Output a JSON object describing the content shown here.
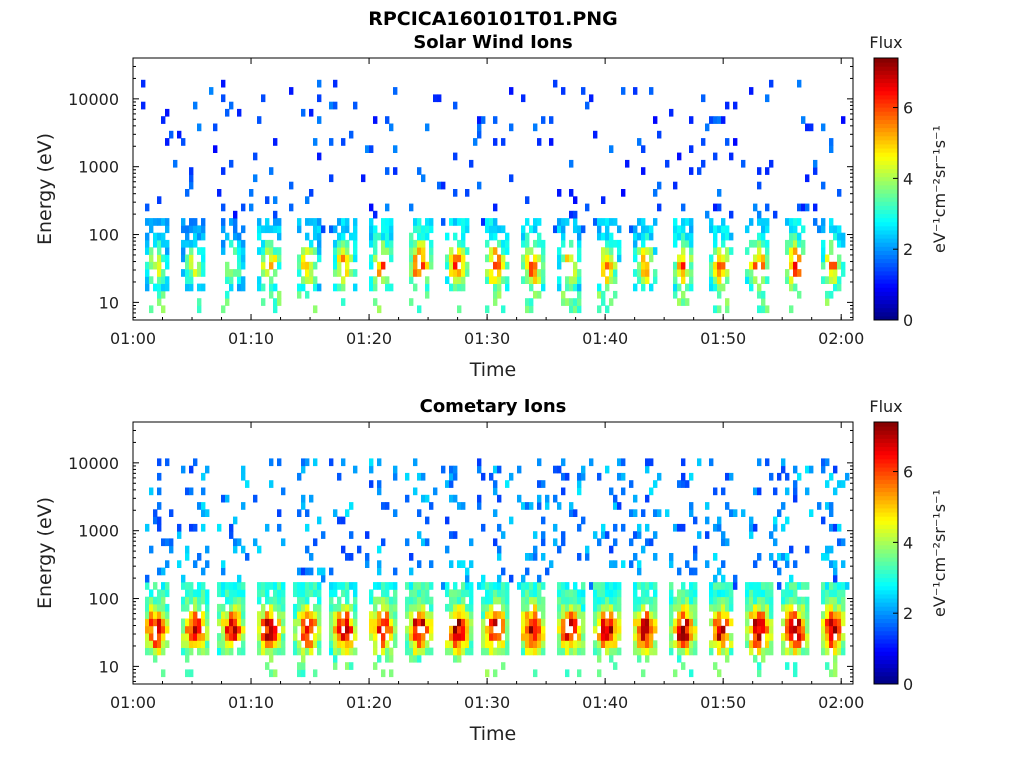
{
  "figure": {
    "title": "RPCICA160101T01.PNG"
  },
  "chart_data": [
    {
      "type": "heatmap",
      "title": "Solar Wind Ions",
      "xlabel": "Time",
      "ylabel": "Energy (eV)",
      "x_ticks": [
        "01:00",
        "01:10",
        "01:20",
        "01:30",
        "01:40",
        "01:50",
        "02:00"
      ],
      "x_range": [
        "01:00",
        "02:01"
      ],
      "y_ticks": [
        "10",
        "100",
        "1000",
        "10000"
      ],
      "y_scale": "log",
      "y_range": [
        5.5,
        40000
      ],
      "colorbar": {
        "title": "Flux",
        "label": "eV⁻¹cm⁻²sr⁻¹s⁻¹",
        "ticks": [
          "0",
          "2",
          "4",
          "6"
        ],
        "range": [
          0,
          7.4
        ],
        "colormap": "jet"
      },
      "scan_centers_min": [
        2.0,
        5.2,
        8.4,
        11.6,
        14.8,
        17.9,
        21.1,
        24.3,
        27.5,
        30.7,
        33.9,
        37.0,
        40.2,
        43.4,
        46.6,
        49.8,
        53.0,
        56.1,
        59.3
      ],
      "peak_energy_eV": 35,
      "peak_flux": [
        4.6,
        4.4,
        4.3,
        5.2,
        5.0,
        5.3,
        5.6,
        6.2,
        5.9,
        5.8,
        5.7,
        5.0,
        5.3,
        5.2,
        5.4,
        5.4,
        5.6,
        5.8,
        5.3
      ],
      "background_range_eV": [
        100,
        20000
      ],
      "background_flux": 1.6
    },
    {
      "type": "heatmap",
      "title": "Cometary Ions",
      "xlabel": "Time",
      "ylabel": "Energy (eV)",
      "x_ticks": [
        "01:00",
        "01:10",
        "01:20",
        "01:30",
        "01:40",
        "01:50",
        "02:00"
      ],
      "x_range": [
        "01:00",
        "02:01"
      ],
      "y_ticks": [
        "10",
        "100",
        "1000",
        "10000"
      ],
      "y_scale": "log",
      "y_range": [
        5.5,
        40000
      ],
      "colorbar": {
        "title": "Flux",
        "label": "eV⁻¹cm⁻²sr⁻¹s⁻¹",
        "ticks": [
          "0",
          "2",
          "4",
          "6"
        ],
        "range": [
          0,
          7.4
        ],
        "colormap": "jet"
      },
      "scan_centers_min": [
        2.0,
        5.2,
        8.4,
        11.6,
        14.8,
        17.9,
        21.1,
        24.3,
        27.5,
        30.7,
        33.9,
        37.0,
        40.2,
        43.4,
        46.6,
        49.8,
        53.0,
        56.1,
        59.3
      ],
      "peak_energy_eV": 35,
      "peak_flux": [
        6.7,
        6.6,
        6.4,
        6.7,
        6.5,
        6.6,
        6.8,
        6.9,
        6.8,
        6.7,
        6.9,
        6.6,
        6.7,
        6.6,
        6.8,
        6.7,
        6.8,
        6.9,
        6.7
      ],
      "background_range_eV": [
        150,
        12000
      ],
      "background_flux": 2.2
    }
  ]
}
